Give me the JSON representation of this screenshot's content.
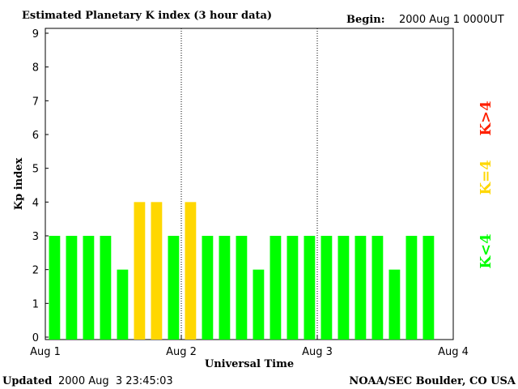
{
  "header": {
    "title": "Estimated Planetary K index (3 hour data)",
    "begin_label": "Begin:",
    "begin_value": "2000 Aug 1 0000UT"
  },
  "footer": {
    "updated_label": "Updated",
    "updated_value": "2000 Aug  3 23:45:03",
    "credit": "NOAA/SEC Boulder, CO USA"
  },
  "legend": {
    "items": [
      {
        "label": "K<4",
        "color": "#00ff00"
      },
      {
        "label": "K=4",
        "color": "#ffd700"
      },
      {
        "label": "K>4",
        "color": "#ff2000"
      }
    ]
  },
  "chart_data": {
    "type": "bar",
    "title": "Estimated Planetary K index (3 hour data)",
    "xlabel": "Universal Time",
    "ylabel": "Kp index",
    "ylim": [
      0,
      9
    ],
    "yticks": [
      "0",
      "1",
      "2",
      "3",
      "4",
      "5",
      "6",
      "7",
      "8",
      "9"
    ],
    "xticks": [
      "Aug 1",
      "Aug 2",
      "Aug 3",
      "Aug 4"
    ],
    "bars_per_day": 8,
    "days": 3,
    "values": [
      3,
      3,
      3,
      3,
      2,
      4,
      4,
      3,
      4,
      3,
      3,
      3,
      2,
      3,
      3,
      3,
      3,
      3,
      3,
      3,
      2,
      3,
      3
    ],
    "colors": {
      "low": "#00ff00",
      "equal": "#ffd700",
      "high": "#ff2000"
    },
    "grid": "dotted day separators"
  }
}
